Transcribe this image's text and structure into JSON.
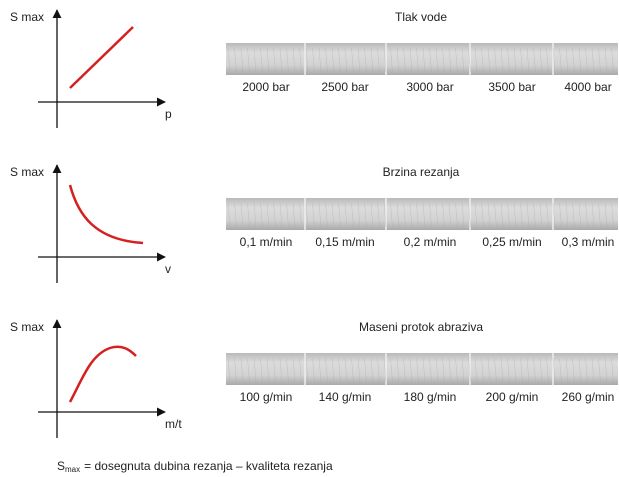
{
  "rows": [
    {
      "y_axis_label": "S max",
      "x_axis_label": "p",
      "title": "Tlak vode",
      "labels": [
        "2000 bar",
        "2500 bar",
        "3000 bar",
        "3500 bar",
        "4000 bar"
      ]
    },
    {
      "y_axis_label": "S max",
      "x_axis_label": "v",
      "title": "Brzina rezanja",
      "labels": [
        "0,1 m/min",
        "0,15 m/min",
        "0,2 m/min",
        "0,25 m/min",
        "0,3 m/min"
      ]
    },
    {
      "y_axis_label": "S max",
      "x_axis_label": "m/t",
      "title": "Maseni protok abraziva",
      "labels": [
        "100 g/min",
        "140 g/min",
        "180 g/min",
        "200 g/min",
        "260 g/min"
      ]
    }
  ],
  "footnote": {
    "symbol": "S",
    "subscript": "max",
    "text": "= dosegnuta dubina rezanja – kvaliteta rezanja"
  }
}
